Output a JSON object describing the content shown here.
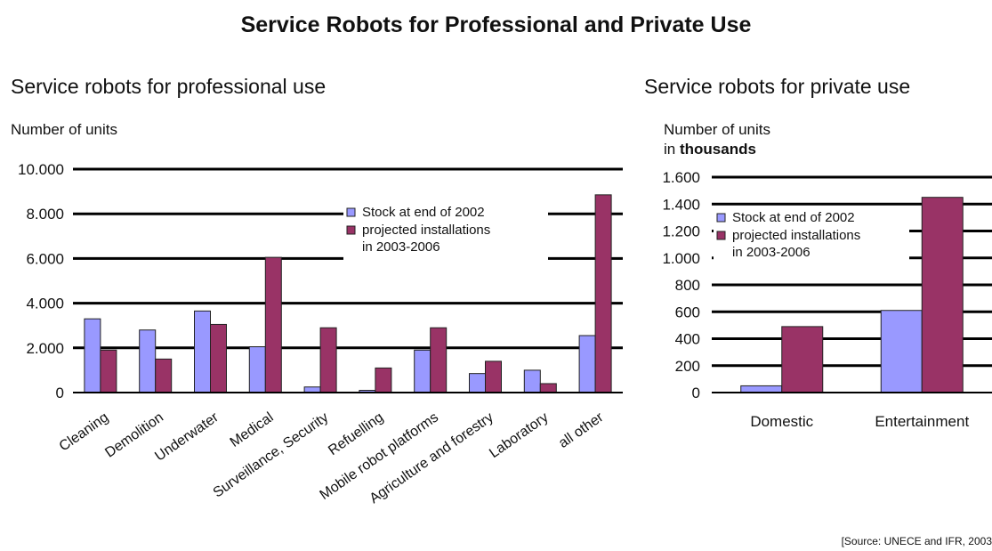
{
  "page": {
    "title": "Service Robots for Professional and Private Use",
    "source": "[Source: UNECE and IFR, 2003"
  },
  "chart_data": [
    {
      "type": "bar",
      "title": "Service robots for professional use",
      "ylabel": "Number of units",
      "ylim": [
        0,
        10000
      ],
      "y_ticks": [
        0,
        2000,
        4000,
        6000,
        8000,
        10000
      ],
      "y_tick_labels": [
        "0",
        "2.000",
        "4.000",
        "6.000",
        "8.000",
        "10.000"
      ],
      "categories": [
        "Cleaning",
        "Demolition",
        "Underwater",
        "Medical",
        "Surveillance, Security",
        "Refuelling",
        "Mobile robot platforms",
        "Agriculture and forestry",
        "Laboratory",
        "all other"
      ],
      "series": [
        {
          "name": "Stock at end of 2002",
          "color": "#9999ff",
          "values": [
            3300,
            2800,
            3650,
            2050,
            250,
            100,
            1900,
            850,
            1000,
            2550
          ]
        },
        {
          "name": "projected installations in 2003-2006",
          "color": "#993366",
          "values": [
            1900,
            1500,
            3050,
            6050,
            2900,
            1100,
            2900,
            1400,
            400,
            8850
          ]
        }
      ],
      "legend_position": "top-right",
      "grid": true
    },
    {
      "type": "bar",
      "title": "Service robots for private use",
      "ylabel_line1": "Number of units",
      "ylabel_line2_prefix": "in ",
      "ylabel_line2_bold": "thousands",
      "ylim": [
        0,
        1600
      ],
      "y_ticks": [
        0,
        200,
        400,
        600,
        800,
        1000,
        1200,
        1400,
        1600
      ],
      "y_tick_labels": [
        "0",
        "200",
        "400",
        "600",
        "800",
        "1.000",
        "1.200",
        "1.400",
        "1.600"
      ],
      "categories": [
        "Domestic",
        "Entertainment"
      ],
      "series": [
        {
          "name": "Stock at end of 2002",
          "color": "#9999ff",
          "values": [
            50,
            610
          ]
        },
        {
          "name": "projected installations in 2003-2006",
          "color": "#993366",
          "values": [
            490,
            1450
          ]
        }
      ],
      "legend_position": "top-left",
      "grid": true
    }
  ]
}
